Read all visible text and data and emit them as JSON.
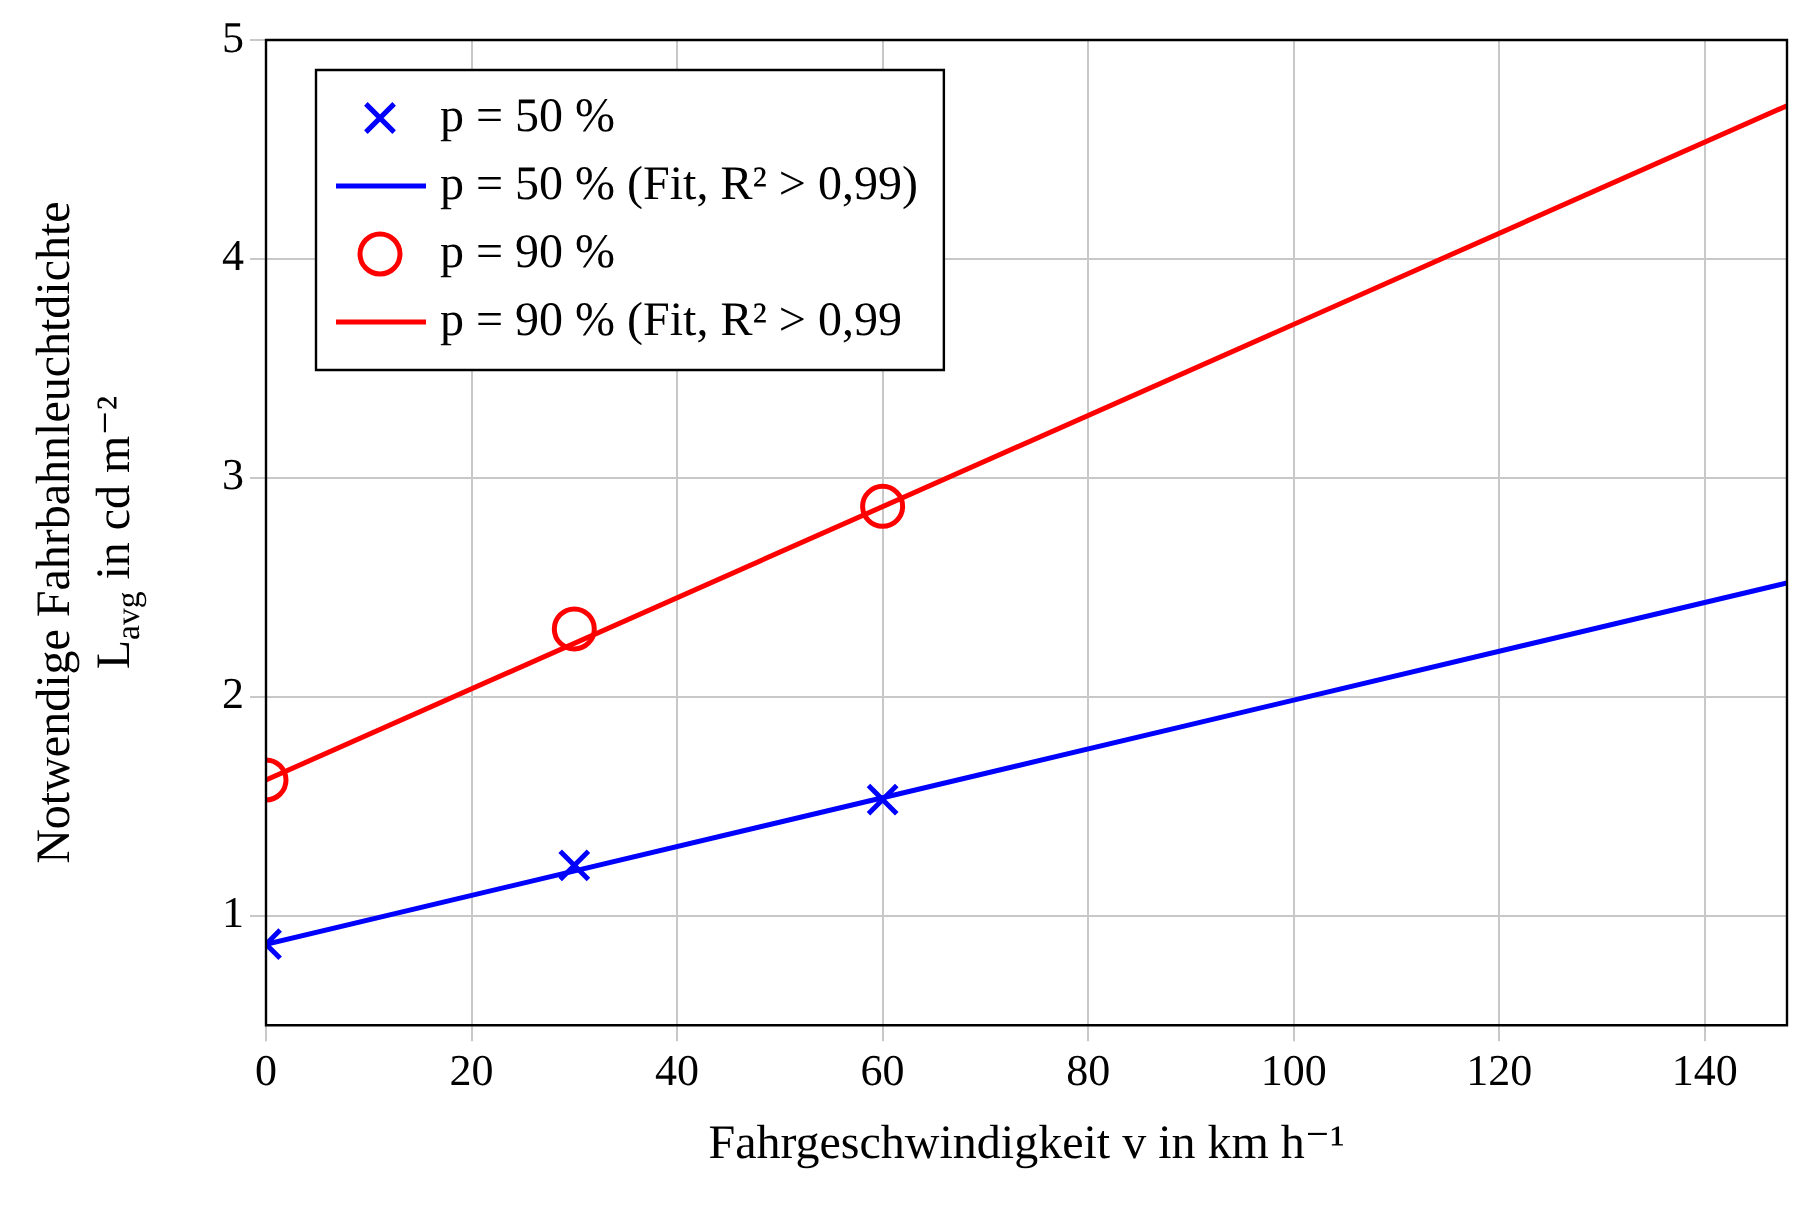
{
  "chart_data": {
    "type": "scatter",
    "xlabel": "Fahrgeschwindigkeit v in km h⁻¹",
    "ylabel": "Notwendige Fahrbahnleuchtdichte\nL$_{avg}$ in cd m⁻²",
    "xlim": [
      0,
      148
    ],
    "ylim": [
      0.5,
      5
    ],
    "xticks": [
      0,
      20,
      40,
      60,
      80,
      100,
      120,
      140
    ],
    "yticks": [
      1,
      2,
      3,
      4,
      5
    ],
    "grid": true,
    "legend": "top left",
    "series": [
      {
        "name": "p = 50 %",
        "type": "scatter",
        "marker": "cross",
        "color": "#0000ff",
        "x": [
          0,
          30,
          60
        ],
        "values": [
          0.87,
          1.23,
          1.53
        ]
      },
      {
        "name": "p = 50 % (Fit, R² > 0,99)",
        "type": "line",
        "marker": "none",
        "color": "#0000ff",
        "x": [
          0,
          148
        ],
        "values": [
          0.87,
          2.52
        ]
      },
      {
        "name": "p = 90 %",
        "type": "scatter",
        "marker": "circle",
        "color": "#ff0000",
        "x": [
          0,
          30,
          60
        ],
        "values": [
          1.62,
          2.31,
          2.87
        ]
      },
      {
        "name": "p = 90 % (Fit, R² > 0,99",
        "type": "line",
        "marker": "none",
        "color": "#ff0000",
        "x": [
          0,
          148
        ],
        "values": [
          1.62,
          4.7
        ]
      }
    ]
  }
}
